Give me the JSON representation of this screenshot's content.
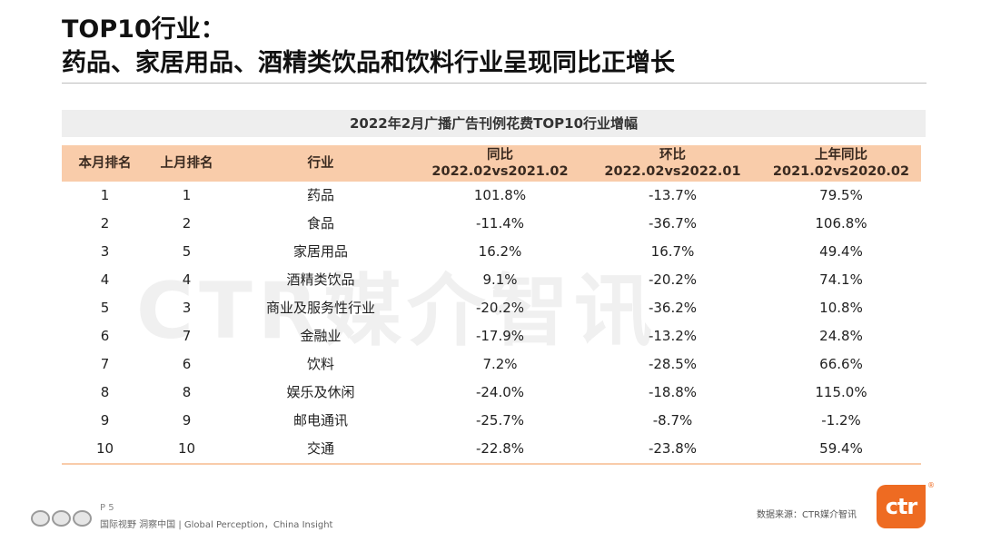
{
  "title": {
    "line1": "TOP10行业：",
    "line2": "药品、家居用品、酒精类饮品和饮料行业呈现同比正增长"
  },
  "watermark": "CTR媒介智讯",
  "table": {
    "caption": "2022年2月广播广告刊例花费TOP10行业增幅",
    "headers": [
      {
        "line1": "本月排名",
        "line2": ""
      },
      {
        "line1": "上月排名",
        "line2": ""
      },
      {
        "line1": "行业",
        "line2": ""
      },
      {
        "line1": "同比",
        "line2": "2022.02vs2021.02"
      },
      {
        "line1": "环比",
        "line2": "2022.02vs2022.01"
      },
      {
        "line1": "上年同比",
        "line2": "2021.02vs2020.02"
      }
    ],
    "rows": [
      [
        "1",
        "1",
        "药品",
        "101.8%",
        "-13.7%",
        "79.5%"
      ],
      [
        "2",
        "2",
        "食品",
        "-11.4%",
        "-36.7%",
        "106.8%"
      ],
      [
        "3",
        "5",
        "家居用品",
        "16.2%",
        "16.7%",
        "49.4%"
      ],
      [
        "4",
        "4",
        "酒精类饮品",
        "9.1%",
        "-20.2%",
        "74.1%"
      ],
      [
        "5",
        "3",
        "商业及服务性行业",
        "-20.2%",
        "-36.2%",
        "10.8%"
      ],
      [
        "6",
        "7",
        "金融业",
        "-17.9%",
        "-13.2%",
        "24.8%"
      ],
      [
        "7",
        "6",
        "饮料",
        "7.2%",
        "-28.5%",
        "66.6%"
      ],
      [
        "8",
        "8",
        "娱乐及休闲",
        "-24.0%",
        "-18.8%",
        "115.0%"
      ],
      [
        "9",
        "9",
        "邮电通讯",
        "-25.7%",
        "-8.7%",
        "-1.2%"
      ],
      [
        "10",
        "10",
        "交通",
        "-22.8%",
        "-23.8%",
        "59.4%"
      ]
    ]
  },
  "footer": {
    "page": "P 5",
    "slogan": "国际视野  洞察中国 | Global Perception，China Insight",
    "source": "数据来源：CTR媒介智讯",
    "brand": "ctr",
    "reg": "®"
  },
  "colors": {
    "header_bg": "#f9ccaa",
    "caption_bg": "#eeeeee",
    "brand": "#ee6b22"
  }
}
